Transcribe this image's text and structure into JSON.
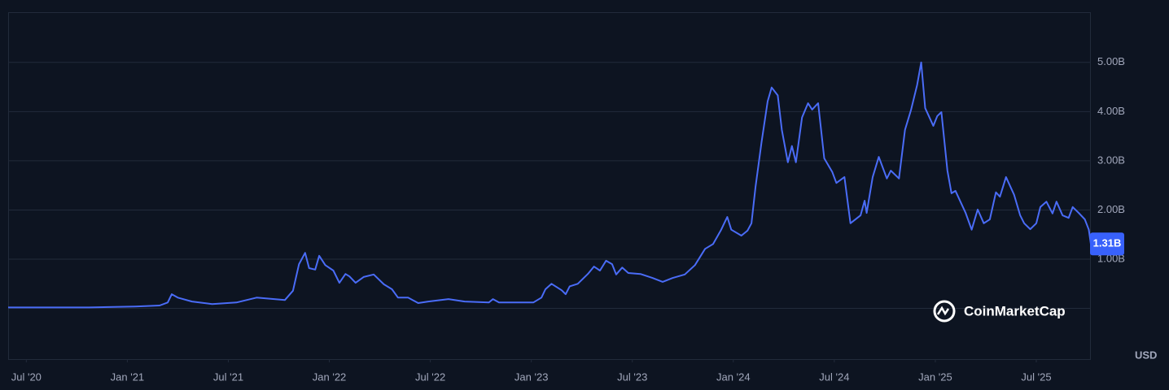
{
  "chart_data": {
    "type": "line",
    "color": "#4a6cf7",
    "x": [
      2020.41,
      2020.81,
      2021.04,
      2021.16,
      2021.2,
      2021.22,
      2021.25,
      2021.32,
      2021.42,
      2021.54,
      2021.64,
      2021.78,
      2021.82,
      2021.85,
      2021.88,
      2021.9,
      2021.93,
      2021.95,
      2021.98,
      2022.02,
      2022.05,
      2022.08,
      2022.1,
      2022.13,
      2022.17,
      2022.22,
      2022.27,
      2022.31,
      2022.34,
      2022.39,
      2022.44,
      2022.49,
      2022.59,
      2022.67,
      2022.79,
      2022.81,
      2022.84,
      2023.01,
      2023.05,
      2023.07,
      2023.1,
      2023.15,
      2023.17,
      2023.19,
      2023.23,
      2023.28,
      2023.31,
      2023.34,
      2023.37,
      2023.4,
      2023.42,
      2023.45,
      2023.48,
      2023.54,
      2023.6,
      2023.65,
      2023.7,
      2023.76,
      2023.81,
      2023.86,
      2023.9,
      2023.94,
      2023.97,
      2023.99,
      2024.04,
      2024.07,
      2024.09,
      2024.11,
      2024.14,
      2024.17,
      2024.19,
      2024.22,
      2024.24,
      2024.27,
      2024.29,
      2024.31,
      2024.34,
      2024.37,
      2024.39,
      2024.42,
      2024.45,
      2024.49,
      2024.51,
      2024.55,
      2024.58,
      2024.63,
      2024.65,
      2024.66,
      2024.69,
      2024.72,
      2024.76,
      2024.78,
      2024.82,
      2024.85,
      2024.88,
      2024.91,
      2024.93,
      2024.95,
      2024.99,
      2025.01,
      2025.03,
      2025.06,
      2025.08,
      2025.1,
      2025.15,
      2025.18,
      2025.21,
      2025.24,
      2025.27,
      2025.3,
      2025.32,
      2025.35,
      2025.39,
      2025.42,
      2025.44,
      2025.47,
      2025.5,
      2025.52,
      2025.55,
      2025.58,
      2025.6,
      2025.63,
      2025.66,
      2025.68,
      2025.71,
      2025.74,
      2025.76,
      2025.77
    ],
    "values": [
      0.02,
      0.02,
      0.04,
      0.06,
      0.12,
      0.29,
      0.22,
      0.14,
      0.09,
      0.12,
      0.22,
      0.17,
      0.36,
      0.9,
      1.13,
      0.82,
      0.79,
      1.07,
      0.88,
      0.77,
      0.52,
      0.7,
      0.65,
      0.52,
      0.64,
      0.69,
      0.49,
      0.39,
      0.22,
      0.22,
      0.11,
      0.14,
      0.19,
      0.14,
      0.12,
      0.19,
      0.12,
      0.12,
      0.22,
      0.39,
      0.5,
      0.37,
      0.29,
      0.45,
      0.5,
      0.7,
      0.85,
      0.77,
      0.97,
      0.9,
      0.69,
      0.83,
      0.72,
      0.7,
      0.62,
      0.54,
      0.62,
      0.69,
      0.88,
      1.21,
      1.31,
      1.6,
      1.86,
      1.6,
      1.48,
      1.58,
      1.73,
      2.47,
      3.38,
      4.21,
      4.49,
      4.33,
      3.63,
      2.97,
      3.3,
      2.97,
      3.88,
      4.17,
      4.04,
      4.17,
      3.05,
      2.77,
      2.55,
      2.67,
      1.73,
      1.89,
      2.19,
      1.94,
      2.67,
      3.08,
      2.64,
      2.8,
      2.64,
      3.63,
      4.04,
      4.54,
      5.0,
      4.07,
      3.71,
      3.91,
      3.99,
      2.8,
      2.34,
      2.39,
      1.94,
      1.6,
      2.01,
      1.73,
      1.81,
      2.36,
      2.27,
      2.67,
      2.31,
      1.89,
      1.73,
      1.61,
      1.73,
      2.06,
      2.17,
      1.93,
      2.17,
      1.89,
      1.84,
      2.06,
      1.94,
      1.81,
      1.6,
      1.31
    ],
    "xlim": [
      2020.41,
      2025.77
    ],
    "xticks": [
      {
        "value": 2020.5,
        "label": "Jul '20"
      },
      {
        "value": 2021.0,
        "label": "Jan '21"
      },
      {
        "value": 2021.5,
        "label": "Jul '21"
      },
      {
        "value": 2022.0,
        "label": "Jan '22"
      },
      {
        "value": 2022.5,
        "label": "Jul '22"
      },
      {
        "value": 2023.0,
        "label": "Jan '23"
      },
      {
        "value": 2023.5,
        "label": "Jul '23"
      },
      {
        "value": 2024.0,
        "label": "Jan '24"
      },
      {
        "value": 2024.5,
        "label": "Jul '24"
      },
      {
        "value": 2025.0,
        "label": "Jan '25"
      },
      {
        "value": 2025.5,
        "label": "Jul '25"
      }
    ],
    "ylim": [
      -1.03,
      6.02
    ],
    "yticks": [
      {
        "value": 1,
        "label": "1.00B"
      },
      {
        "value": 2,
        "label": "2.00B"
      },
      {
        "value": 3,
        "label": "3.00B"
      },
      {
        "value": 4,
        "label": "4.00B"
      },
      {
        "value": 5,
        "label": "5.00B"
      }
    ],
    "grid": true,
    "last_label": {
      "value": 1.31,
      "label": "1.31B"
    },
    "watermark": "CoinMarketCap",
    "currency": "USD"
  }
}
